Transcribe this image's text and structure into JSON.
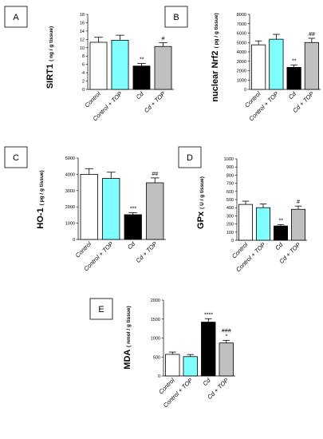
{
  "chart_data": [
    {
      "type": "bar",
      "panel_label": "A",
      "ylabel": "SIRT1",
      "yunit": "( ng / g tissue)",
      "categories": [
        "Control",
        "Control + TOP",
        "Cd",
        "Cd + TOP"
      ],
      "values": [
        11.3,
        11.8,
        5.6,
        10.3
      ],
      "errors": [
        1.2,
        1.2,
        0.6,
        0.9
      ],
      "annotations": [
        "",
        "",
        "**",
        "#"
      ],
      "ylim": [
        0,
        18
      ],
      "yticks": [
        0,
        2,
        4,
        6,
        8,
        10,
        12,
        14,
        16,
        18
      ],
      "colors": [
        "#ffffff",
        "#80ffff",
        "#000000",
        "#c0c0c0"
      ]
    },
    {
      "type": "bar",
      "panel_label": "B",
      "ylabel": "nuclear Nrf2",
      "yunit": "( pg / g tissue)",
      "categories": [
        "Control",
        "Control + TOP",
        "Cd",
        "Cd + TOP"
      ],
      "values": [
        4750,
        5350,
        2350,
        5000
      ],
      "errors": [
        420,
        520,
        260,
        450
      ],
      "annotations": [
        "",
        "",
        "**",
        "##"
      ],
      "ylim": [
        0,
        8000
      ],
      "yticks": [
        0,
        1000,
        2000,
        3000,
        4000,
        5000,
        6000,
        7000,
        8000
      ],
      "colors": [
        "#ffffff",
        "#80ffff",
        "#000000",
        "#c0c0c0"
      ]
    },
    {
      "type": "bar",
      "panel_label": "C",
      "ylabel": "HO-1",
      "yunit": "( pg / g tissue)",
      "categories": [
        "Control",
        "Control + TOP",
        "Cd",
        "Cd + TOP"
      ],
      "values": [
        4000,
        3750,
        1520,
        3480
      ],
      "errors": [
        350,
        380,
        130,
        300
      ],
      "annotations": [
        "",
        "",
        "***",
        "##"
      ],
      "ylim": [
        0,
        5000
      ],
      "yticks": [
        0,
        1000,
        2000,
        3000,
        4000,
        5000
      ],
      "colors": [
        "#ffffff",
        "#80ffff",
        "#000000",
        "#c0c0c0"
      ]
    },
    {
      "type": "bar",
      "panel_label": "D",
      "ylabel": "GPx",
      "yunit": "( U / g tissue)",
      "categories": [
        "Control",
        "Control + TOP",
        "Cd",
        "Cd + TOP"
      ],
      "values": [
        440,
        400,
        175,
        380
      ],
      "errors": [
        40,
        45,
        18,
        40
      ],
      "annotations": [
        "",
        "",
        "**",
        "#"
      ],
      "ylim": [
        0,
        1000
      ],
      "yticks": [
        0,
        100,
        200,
        300,
        400,
        500,
        600,
        700,
        800,
        900,
        1000
      ],
      "colors": [
        "#ffffff",
        "#80ffff",
        "#000000",
        "#c0c0c0"
      ]
    },
    {
      "type": "bar",
      "panel_label": "E",
      "ylabel": "MDA",
      "yunit": "( nmol / g tissue)",
      "categories": [
        "Control",
        "Control + TOP",
        "Cd",
        "Cd + TOP"
      ],
      "values": [
        570,
        510,
        1420,
        870
      ],
      "errors": [
        60,
        55,
        90,
        70
      ],
      "annotations": [
        "",
        "",
        "****",
        "###\n*"
      ],
      "ylim": [
        0,
        2000
      ],
      "yticks": [
        0,
        500,
        1000,
        1500,
        2000
      ],
      "colors": [
        "#ffffff",
        "#80ffff",
        "#000000",
        "#c0c0c0"
      ]
    }
  ]
}
